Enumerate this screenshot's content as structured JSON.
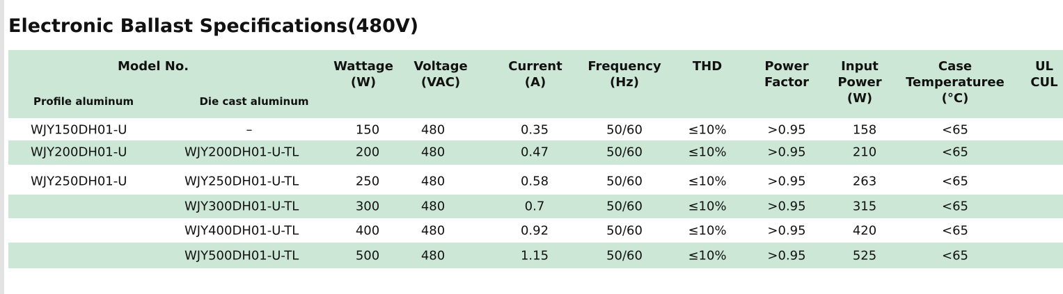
{
  "title": "Electronic Ballast Specifications(480V)",
  "table": {
    "model_header": "Model No.",
    "sub_headers": [
      "Profile aluminum",
      "Die cast aluminum"
    ],
    "columns": [
      [
        "Wattage",
        "(W)"
      ],
      [
        "Voltage",
        "(VAC)"
      ],
      [
        "Current",
        "(A)"
      ],
      [
        "Frequency",
        "(Hz)"
      ],
      [
        "THD"
      ],
      [
        "Power",
        "Factor"
      ],
      [
        "Input",
        "Power",
        "(W)"
      ],
      [
        "Case",
        "Temperaturee",
        "(°C)"
      ],
      [
        "UL",
        "CUL"
      ]
    ],
    "rows": [
      [
        "WJY150DH01-U",
        "–",
        "150",
        "480",
        "0.35",
        "50/60",
        "≤10%",
        ">0.95",
        "158",
        "<65"
      ],
      [
        "WJY200DH01-U",
        "WJY200DH01-U-TL",
        "200",
        "480",
        "0.47",
        "50/60",
        "≤10%",
        ">0.95",
        "210",
        "<65"
      ],
      [
        "WJY250DH01-U",
        "WJY250DH01-U-TL",
        "250",
        "480",
        "0.58",
        "50/60",
        "≤10%",
        ">0.95",
        "263",
        "<65"
      ],
      [
        null,
        "WJY300DH01-U-TL",
        "300",
        "480",
        "0.7",
        "50/60",
        "≤10%",
        ">0.95",
        "315",
        "<65"
      ],
      [
        null,
        "WJY400DH01-U-TL",
        "400",
        "480",
        "0.92",
        "50/60",
        "≤10%",
        ">0.95",
        "420",
        "<65"
      ],
      [
        null,
        "WJY500DH01-U-TL",
        "500",
        "480",
        "1.15",
        "50/60",
        "≤10%",
        ">0.95",
        "525",
        "<65"
      ]
    ]
  }
}
